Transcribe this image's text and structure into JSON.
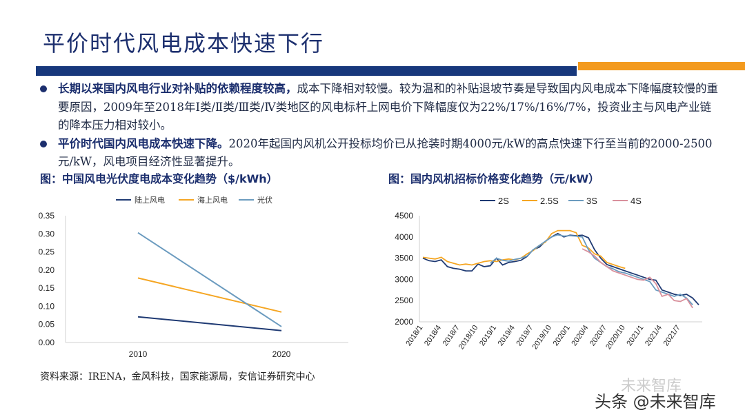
{
  "page": {
    "title": "平价时代风电成本快速下行",
    "bullets": [
      {
        "bold": "长期以来国内风电行业对补贴的依赖程度较高，",
        "text": "成本下降相对较慢。较为温和的补贴退坡节奏是导致国内风电成本下降幅度较慢的重要原因，2009年至2018年Ⅰ类/Ⅱ类/Ⅲ类/Ⅳ类地区的风电标杆上网电价下降幅度仅为22%/17%/16%/7%，投资业主与风电产业链的降本压力相对较小。"
      },
      {
        "bold": "平价时代国内风电成本快速下降。",
        "text": "2020年起国内风机公开投标均价已从抢装时期4000元/kW的高点快速下行至当前的2000-2500元/kW，风电项目经济性显著提升。"
      }
    ],
    "source": "资料来源：IRENA，金风科技，国家能源局，安信证券研究中心",
    "watermark_top": "未来智库",
    "watermark_bottom": "头条 @未来智库"
  },
  "colors": {
    "navy": "#17387c",
    "orange": "#f39a1e",
    "series_navy": "#1f3a73",
    "series_orange": "#f5a623",
    "series_steel": "#6b9bbf",
    "series_pink": "#d9909c"
  },
  "chart_data": [
    {
      "type": "line",
      "title": "图：中国风电光伏度电成本变化趋势（$/kWh）",
      "x": [
        "2010",
        "2020"
      ],
      "ylim": [
        0,
        0.35
      ],
      "yticks": [
        "0.00",
        "0.05",
        "0.10",
        "0.15",
        "0.20",
        "0.25",
        "0.30",
        "0.35"
      ],
      "legend_position": "top",
      "series": [
        {
          "name": "陆上风电",
          "color": "#1f3a73",
          "values": [
            0.071,
            0.033
          ]
        },
        {
          "name": "海上风电",
          "color": "#f5a623",
          "values": [
            0.178,
            0.084
          ]
        },
        {
          "name": "光伏",
          "color": "#6b9bbf",
          "values": [
            0.303,
            0.044
          ]
        }
      ]
    },
    {
      "type": "line",
      "title": "图：国内风机招标价格变化趋势（元/kW）",
      "legend_position": "top",
      "ylim": [
        2000,
        4500
      ],
      "yticks": [
        "2000",
        "2500",
        "3000",
        "3500",
        "4000",
        "4500"
      ],
      "x_start": "2018/1",
      "x_count": 46,
      "xtick_labels": [
        "2018/1",
        "2018/4",
        "2018/7",
        "2018/10",
        "2019/1",
        "2019/4",
        "2019/7",
        "2019/10",
        "2020/1",
        "2020/4",
        "2020/7",
        "2020/10",
        "2021/1",
        "2021/4",
        "2021/7"
      ],
      "series": [
        {
          "name": "2S",
          "color": "#1f3a73",
          "start": 0,
          "values": [
            3500,
            3440,
            3420,
            3460,
            3300,
            3260,
            3240,
            3200,
            3200,
            3360,
            3300,
            3320,
            3500,
            3340,
            3400,
            3420,
            3450,
            3540,
            3700,
            3760,
            3900,
            4000,
            4080,
            4000,
            4040,
            4030,
            4040,
            3980,
            3700,
            3500,
            3350,
            3300,
            3250,
            3200,
            3150,
            3100,
            3050,
            3000,
            2980,
            2750,
            2700,
            2650,
            2620,
            2650,
            2560,
            2400
          ]
        },
        {
          "name": "2.5S",
          "color": "#f5a623",
          "start": 0,
          "values": [
            3520,
            3500,
            3480,
            3520,
            3420,
            3380,
            3340,
            3360,
            3340,
            3380,
            3420,
            3440,
            3420,
            3460,
            3480,
            3460,
            3500,
            3600,
            3680,
            3800,
            3880,
            4080,
            4150,
            4150,
            4150,
            4100,
            3800,
            3740,
            3600,
            3550,
            3400,
            3350,
            3300,
            3260
          ]
        },
        {
          "name": "3S",
          "color": "#6b9bbf",
          "start": 11,
          "values": [
            3380,
            3500,
            3450,
            3430,
            3470,
            3500,
            3550,
            3700,
            3800,
            3900,
            4000,
            4050,
            4020,
            4030,
            4020,
            4000,
            3700,
            3500,
            3400,
            3300,
            3250,
            3180,
            3150,
            3100,
            3050,
            3000,
            2950,
            2750,
            2700,
            2650,
            2600,
            2650,
            2560,
            2400
          ]
        },
        {
          "name": "4S",
          "color": "#d9909c",
          "start": 26,
          "values": [
            3720,
            3650,
            3550,
            3400,
            3300,
            3200,
            3150,
            3100,
            3050,
            3000,
            2980,
            3050,
            2900,
            2600,
            2650,
            2500,
            2480,
            2550,
            2330
          ]
        }
      ]
    }
  ]
}
